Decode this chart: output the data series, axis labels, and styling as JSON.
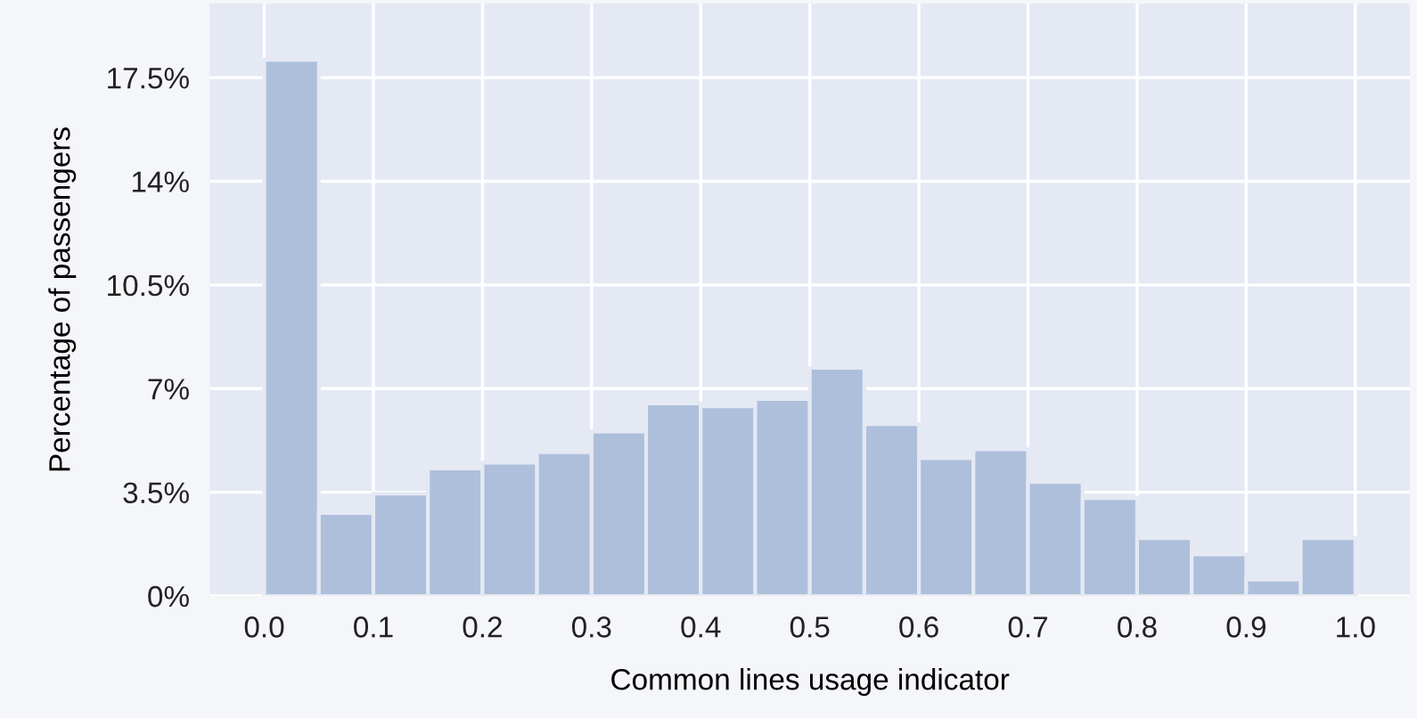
{
  "chart_data": {
    "type": "histogram",
    "xlabel": "Common lines usage indicator",
    "ylabel": "Percentage of passengers",
    "bins": [
      0,
      0.05,
      0.1,
      0.15,
      0.2,
      0.25,
      0.3,
      0.35,
      0.4,
      0.45,
      0.5,
      0.55,
      0.6,
      0.65,
      0.7,
      0.75,
      0.8,
      0.85,
      0.9,
      0.95,
      1.0
    ],
    "values": [
      18.1,
      2.8,
      3.45,
      4.3,
      4.5,
      4.85,
      5.55,
      6.5,
      6.4,
      6.65,
      7.7,
      5.8,
      4.65,
      4.95,
      3.85,
      3.3,
      1.95,
      1.4,
      0.55,
      1.95
    ],
    "color": "#aebfdb",
    "xlim": [
      -0.05,
      1.05
    ],
    "ylim": [
      0,
      20
    ],
    "xticks": [
      {
        "value": 0,
        "label": "0.0"
      },
      0.1,
      0.2,
      0.3,
      0.4,
      0.5,
      0.6,
      0.7,
      0.8,
      0.9,
      {
        "value": 1,
        "label": "1.0"
      }
    ],
    "yticks": [
      {
        "value": 0,
        "label": "0%"
      },
      {
        "value": 3.5,
        "label": "3.5%"
      },
      {
        "value": 7,
        "label": "7%"
      },
      {
        "value": 10.5,
        "label": "10.5%"
      },
      {
        "value": 14,
        "label": "14%"
      },
      {
        "value": 17.5,
        "label": "17.5%"
      }
    ],
    "grid": true,
    "legend": false
  }
}
